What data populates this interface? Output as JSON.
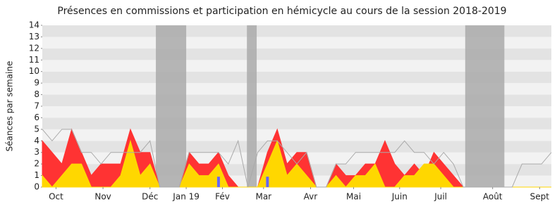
{
  "chart_data": {
    "type": "area",
    "title": "Présences en commissions et participation en hémicycle au cours de la session 2018-2019",
    "y_label": "Séances par semaine",
    "x": [
      0,
      1,
      2,
      3,
      4,
      5,
      6,
      7,
      8,
      9,
      10,
      11,
      12,
      13,
      14,
      15,
      16,
      17,
      18,
      19,
      20,
      21,
      22,
      23,
      24,
      25,
      26,
      27,
      28,
      29,
      30,
      31,
      32,
      33,
      34,
      35,
      36,
      37,
      38,
      39,
      40,
      41,
      42,
      43,
      44,
      45,
      46,
      47,
      48,
      49,
      50,
      51,
      52
    ],
    "xlim": [
      0,
      52
    ],
    "xticks": [
      {
        "value": 1.4,
        "label": "Oct"
      },
      {
        "value": 6.2,
        "label": "Nov"
      },
      {
        "value": 11.0,
        "label": "Déc"
      },
      {
        "value": 14.7,
        "label": "Jan 19"
      },
      {
        "value": 18.4,
        "label": "Fév"
      },
      {
        "value": 22.6,
        "label": "Mar"
      },
      {
        "value": 27.4,
        "label": "Avr"
      },
      {
        "value": 31.8,
        "label": "Mai"
      },
      {
        "value": 36.5,
        "label": "Juin"
      },
      {
        "value": 40.7,
        "label": "Juil"
      },
      {
        "value": 46.0,
        "label": "Août"
      },
      {
        "value": 50.8,
        "label": "Sept"
      }
    ],
    "ylim": [
      0,
      14
    ],
    "yticks": [
      0,
      1,
      2,
      3,
      4,
      5,
      6,
      7,
      8,
      9,
      10,
      11,
      12,
      13,
      14
    ],
    "shaded_ranges": [
      [
        11.6,
        14.7
      ],
      [
        20.9,
        21.9
      ],
      [
        43.2,
        47.2
      ]
    ],
    "shade_color": "#aaaaaa",
    "stripe_colors": [
      "#f2f2f2",
      "#e3e3e3"
    ],
    "series": [
      {
        "kind": "area",
        "color": "#ff3333",
        "values": [
          4,
          3,
          2,
          5,
          3,
          1,
          2,
          2,
          2,
          5,
          3,
          3,
          0,
          0,
          0,
          3,
          2,
          2,
          3,
          1,
          0,
          0,
          0,
          3,
          5,
          2,
          3,
          3,
          0,
          0,
          2,
          1,
          1,
          2,
          2,
          4,
          2,
          1,
          2,
          1,
          3,
          2,
          1,
          0,
          0,
          0,
          0,
          0,
          0,
          0,
          0,
          0,
          0
        ]
      },
      {
        "kind": "area",
        "color": "#ffd700",
        "values": [
          1,
          0,
          1,
          2,
          2,
          0,
          0,
          0,
          1,
          4,
          1,
          2,
          0,
          0,
          0,
          2,
          1,
          1,
          2,
          0,
          0,
          0,
          0,
          2,
          4,
          1,
          2,
          1,
          0,
          0,
          1,
          0,
          1,
          1,
          2,
          0,
          0,
          1,
          1,
          2,
          2,
          1,
          0,
          0,
          0,
          0,
          0,
          0,
          0,
          0,
          0,
          0,
          0
        ]
      },
      {
        "kind": "line",
        "color": "#aaaaaa",
        "values": [
          5,
          4,
          5,
          5,
          3,
          3,
          2,
          3,
          3,
          3,
          3,
          4,
          0,
          0,
          0,
          3,
          3,
          3,
          3,
          2,
          4,
          0,
          3,
          4,
          4,
          3,
          2,
          3,
          0,
          0,
          2,
          2,
          3,
          3,
          3,
          3,
          3,
          4,
          3,
          3,
          2,
          3,
          2,
          0,
          0,
          0,
          0,
          0,
          0,
          2,
          2,
          2,
          3
        ]
      },
      {
        "kind": "bar",
        "color": "#6666ff",
        "x": [
          18,
          23
        ],
        "values": [
          0.9,
          0.9
        ]
      }
    ]
  }
}
